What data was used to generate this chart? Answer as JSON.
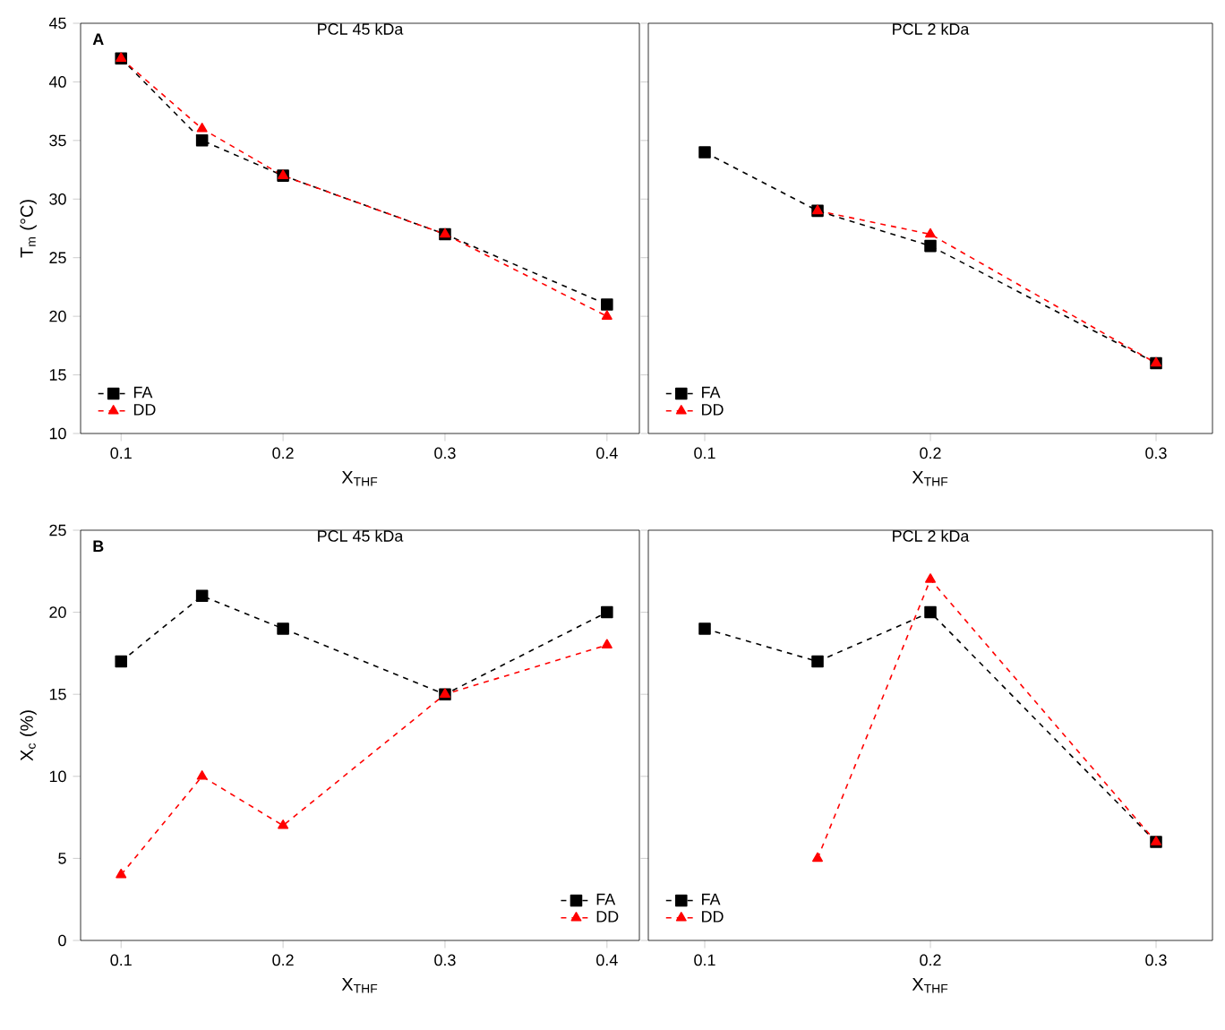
{
  "chart_data": [
    {
      "type": "line",
      "title": "PCL 45 kDa",
      "xlabel": "X$_{THF}$",
      "ylabel": "T$_{m}$ (°C)",
      "annotations": [
        "A"
      ],
      "xlim": [
        0.075,
        0.42
      ],
      "xticks": [
        0.1,
        0.2,
        0.3,
        0.4
      ],
      "ylim": [
        10,
        45
      ],
      "yticks": [
        10,
        15,
        20,
        25,
        30,
        35,
        40,
        45
      ],
      "legend": "bottom left",
      "line_style": "dashed",
      "series": [
        {
          "name": "FA",
          "color": "#000000",
          "marker": "square",
          "x": [
            0.1,
            0.15,
            0.2,
            0.3,
            0.4
          ],
          "values": [
            42,
            35,
            32,
            27,
            21
          ]
        },
        {
          "name": "DD",
          "color": "#ff0000",
          "marker": "triangle",
          "x": [
            0.1,
            0.15,
            0.2,
            0.3,
            0.4
          ],
          "values": [
            42,
            36,
            32,
            27,
            20
          ]
        }
      ]
    },
    {
      "type": "line",
      "title": "PCL 2 kDa",
      "xlabel": "X$_{THF}$",
      "xlim": [
        0.075,
        0.325
      ],
      "xticks": [
        0.1,
        0.2,
        0.3
      ],
      "ylim": [
        10,
        45
      ],
      "yticks": [
        10,
        15,
        20,
        25,
        30,
        35,
        40,
        45
      ],
      "tick_labels": "x",
      "legend": "bottom left",
      "line_style": "dashed",
      "series": [
        {
          "name": "FA",
          "color": "#000000",
          "marker": "square",
          "x": [
            0.1,
            0.15,
            0.2,
            0.3
          ],
          "values": [
            34,
            29,
            26,
            16
          ]
        },
        {
          "name": "DD",
          "color": "#ff0000",
          "marker": "triangle",
          "x": [
            0.15,
            0.2,
            0.3
          ],
          "values": [
            29,
            27,
            16
          ]
        }
      ]
    },
    {
      "type": "line",
      "title": "PCL 45 kDa",
      "xlabel": "X$_{THF}$",
      "ylabel": "X$_{c}$ (%)",
      "annotations": [
        "B"
      ],
      "xlim": [
        0.075,
        0.42
      ],
      "xticks": [
        0.1,
        0.2,
        0.3,
        0.4
      ],
      "ylim": [
        0,
        25
      ],
      "yticks": [
        0,
        5,
        10,
        15,
        20,
        25
      ],
      "legend": "bottom right",
      "line_style": "dashed",
      "series": [
        {
          "name": "FA",
          "color": "#000000",
          "marker": "square",
          "x": [
            0.1,
            0.15,
            0.2,
            0.3,
            0.4
          ],
          "values": [
            17,
            21,
            19,
            15,
            20
          ]
        },
        {
          "name": "DD",
          "color": "#ff0000",
          "marker": "triangle",
          "x": [
            0.1,
            0.15,
            0.2,
            0.3,
            0.4
          ],
          "values": [
            4,
            10,
            7,
            15,
            18
          ]
        }
      ]
    },
    {
      "type": "line",
      "title": "PCL 2 kDa",
      "xlabel": "X$_{THF}$",
      "xlim": [
        0.075,
        0.325
      ],
      "xticks": [
        0.1,
        0.2,
        0.3
      ],
      "ylim": [
        0,
        25
      ],
      "yticks": [
        0,
        5,
        10,
        15,
        20,
        25
      ],
      "tick_labels": "x",
      "legend": "bottom left",
      "line_style": "dashed",
      "series": [
        {
          "name": "FA",
          "color": "#000000",
          "marker": "square",
          "x": [
            0.1,
            0.15,
            0.2,
            0.3
          ],
          "values": [
            19,
            17,
            20,
            6
          ]
        },
        {
          "name": "DD",
          "color": "#ff0000",
          "marker": "triangle",
          "x": [
            0.15,
            0.2,
            0.3
          ],
          "values": [
            5,
            22,
            6
          ]
        }
      ]
    }
  ]
}
